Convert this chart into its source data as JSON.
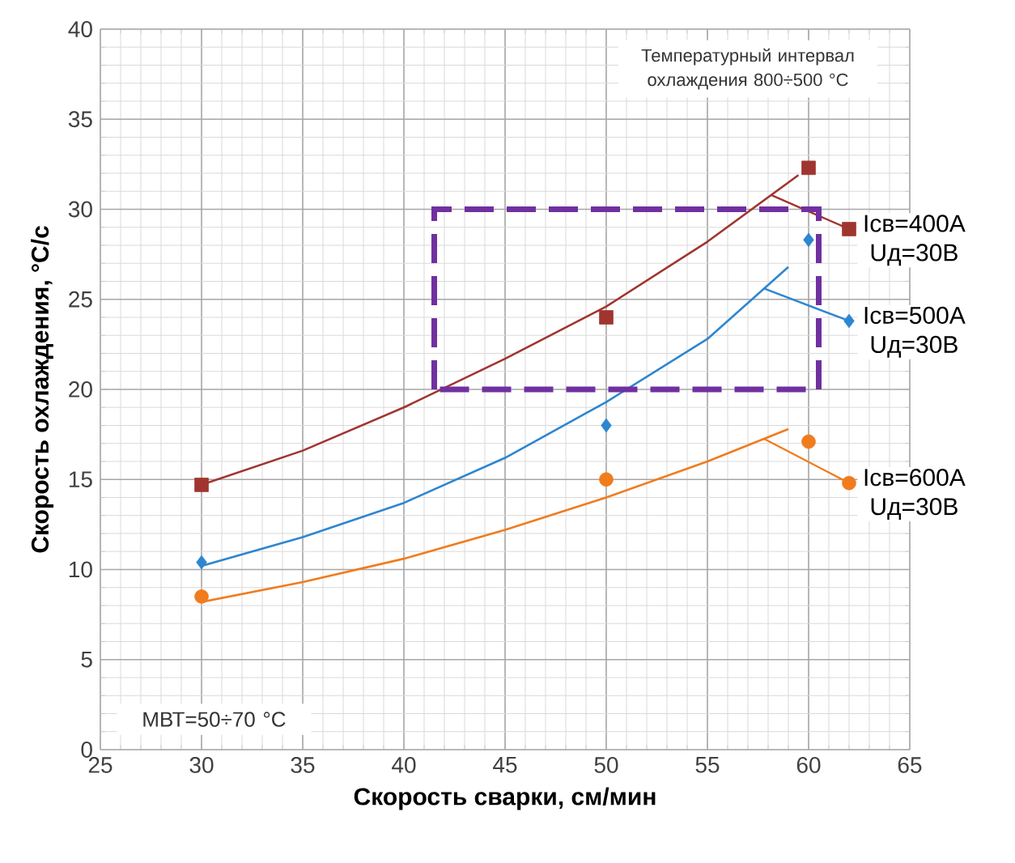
{
  "chart_data": {
    "type": "scatter",
    "xlabel": "Скорость сварки, см/мин",
    "ylabel": "Скорость охлаждения, °С/с",
    "xlim": [
      25,
      65
    ],
    "ylim": [
      0,
      40
    ],
    "xticks": [
      25,
      30,
      35,
      40,
      45,
      50,
      55,
      60,
      65
    ],
    "yticks": [
      0,
      5,
      10,
      15,
      20,
      25,
      30,
      35,
      40
    ],
    "grid": true,
    "legend": "right",
    "annotations": [
      "Температурный интервал охлаждения 800÷500 °С",
      "МВТ=50÷70 °С"
    ],
    "series": [
      {
        "name": "Iсв=400А Uд=30В",
        "color": "#a0352f",
        "marker": "square",
        "x": [
          30,
          50,
          60
        ],
        "values": [
          14.7,
          24,
          32.3
        ]
      },
      {
        "type": "line",
        "color": "#a0352f",
        "marker": "none",
        "x": [
          30,
          35,
          40,
          45,
          50,
          55,
          59.5
        ],
        "values": [
          14.7,
          16.6,
          19.0,
          21.7,
          24.6,
          28.2,
          31.9
        ]
      },
      {
        "name": "Iсв=500А Uд=30В",
        "color": "#2e86d0",
        "marker": "diamond",
        "x": [
          30,
          50,
          60
        ],
        "values": [
          10.4,
          18,
          28.3
        ]
      },
      {
        "type": "line",
        "color": "#2e86d0",
        "marker": "none",
        "x": [
          30,
          35,
          40,
          45,
          50,
          55,
          59
        ],
        "values": [
          10.2,
          11.8,
          13.7,
          16.2,
          19.3,
          22.8,
          26.8
        ]
      },
      {
        "name": "Iсв=600А Uд=30В",
        "color": "#f07c1e",
        "marker": "circle",
        "x": [
          30,
          50,
          60
        ],
        "values": [
          8.5,
          15,
          17.1
        ]
      },
      {
        "type": "line",
        "color": "#f07c1e",
        "marker": "none",
        "x": [
          30,
          35,
          40,
          45,
          50,
          55,
          59
        ],
        "values": [
          8.2,
          9.3,
          10.6,
          12.2,
          14.0,
          16.0,
          17.8
        ]
      }
    ]
  }
}
